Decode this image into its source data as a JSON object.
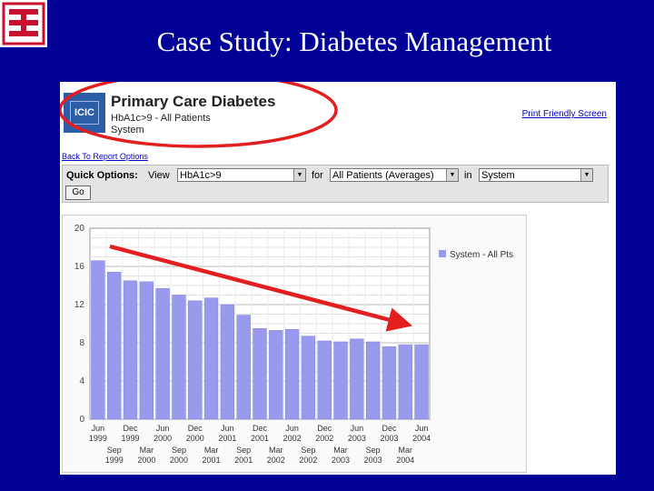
{
  "slide": {
    "title": "Case Study: Diabetes Management"
  },
  "app": {
    "logo_text": "ICIC",
    "title": "Primary Care Diabetes",
    "subtitle1": "HbA1c>9 - All Patients",
    "subtitle2": "System",
    "print_link": "Print Friendly Screen",
    "back_link": "Back To Report Options"
  },
  "quick_options": {
    "label": "Quick Options:",
    "view_label": "View",
    "view_value": "HbA1c>9",
    "for_label": "for",
    "for_value": "All Patients (Averages)",
    "in_label": "in",
    "in_value": "System",
    "go_label": "Go"
  },
  "colors": {
    "bar": "#9999ee",
    "annotation": "#e31e1e",
    "slide_bg": "#000096"
  },
  "chart_data": {
    "type": "bar",
    "legend": [
      "System - All Pts"
    ],
    "legend_position": "top-right",
    "ylim": [
      0,
      20
    ],
    "yticks": [
      0,
      4,
      8,
      12,
      16,
      20
    ],
    "grid": true,
    "categories": [
      "Jun 1999",
      "Sep 1999",
      "Dec 1999",
      "Mar 2000",
      "Jun 2000",
      "Sep 2000",
      "Dec 2000",
      "Mar 2001",
      "Jun 2001",
      "Sep 2001",
      "Dec 2001",
      "Mar 2002",
      "Jun 2002",
      "Sep 2002",
      "Dec 2002",
      "Mar 2003",
      "Jun 2003",
      "Sep 2003",
      "Dec 2003",
      "Mar 2004",
      "Jun 2004"
    ],
    "tick_labels_top": [
      {
        "m": "Jun",
        "y": "1999"
      },
      {
        "m": "Dec",
        "y": "1999"
      },
      {
        "m": "Jun",
        "y": "2000"
      },
      {
        "m": "Dec",
        "y": "2000"
      },
      {
        "m": "Jun",
        "y": "2001"
      },
      {
        "m": "Dec",
        "y": "2001"
      },
      {
        "m": "Jun",
        "y": "2002"
      },
      {
        "m": "Dec",
        "y": "2002"
      },
      {
        "m": "Jun",
        "y": "2003"
      },
      {
        "m": "Dec",
        "y": "2003"
      },
      {
        "m": "Jun",
        "y": "2004"
      }
    ],
    "tick_labels_bottom": [
      {
        "m": "Sep",
        "y": "1999"
      },
      {
        "m": "Mar",
        "y": "2000"
      },
      {
        "m": "Sep",
        "y": "2000"
      },
      {
        "m": "Mar",
        "y": "2001"
      },
      {
        "m": "Sep",
        "y": "2001"
      },
      {
        "m": "Mar",
        "y": "2002"
      },
      {
        "m": "Sep",
        "y": "2002"
      },
      {
        "m": "Mar",
        "y": "2003"
      },
      {
        "m": "Sep",
        "y": "2003"
      },
      {
        "m": "Mar",
        "y": "2004"
      }
    ],
    "series": [
      {
        "name": "System - All Pts",
        "values": [
          16.6,
          15.4,
          14.5,
          14.4,
          13.7,
          13.0,
          12.4,
          12.7,
          12.0,
          10.9,
          9.5,
          9.3,
          9.4,
          8.7,
          8.2,
          8.1,
          8.4,
          8.1,
          7.6,
          7.8,
          7.8
        ]
      }
    ],
    "annotation": "red-arrow"
  }
}
